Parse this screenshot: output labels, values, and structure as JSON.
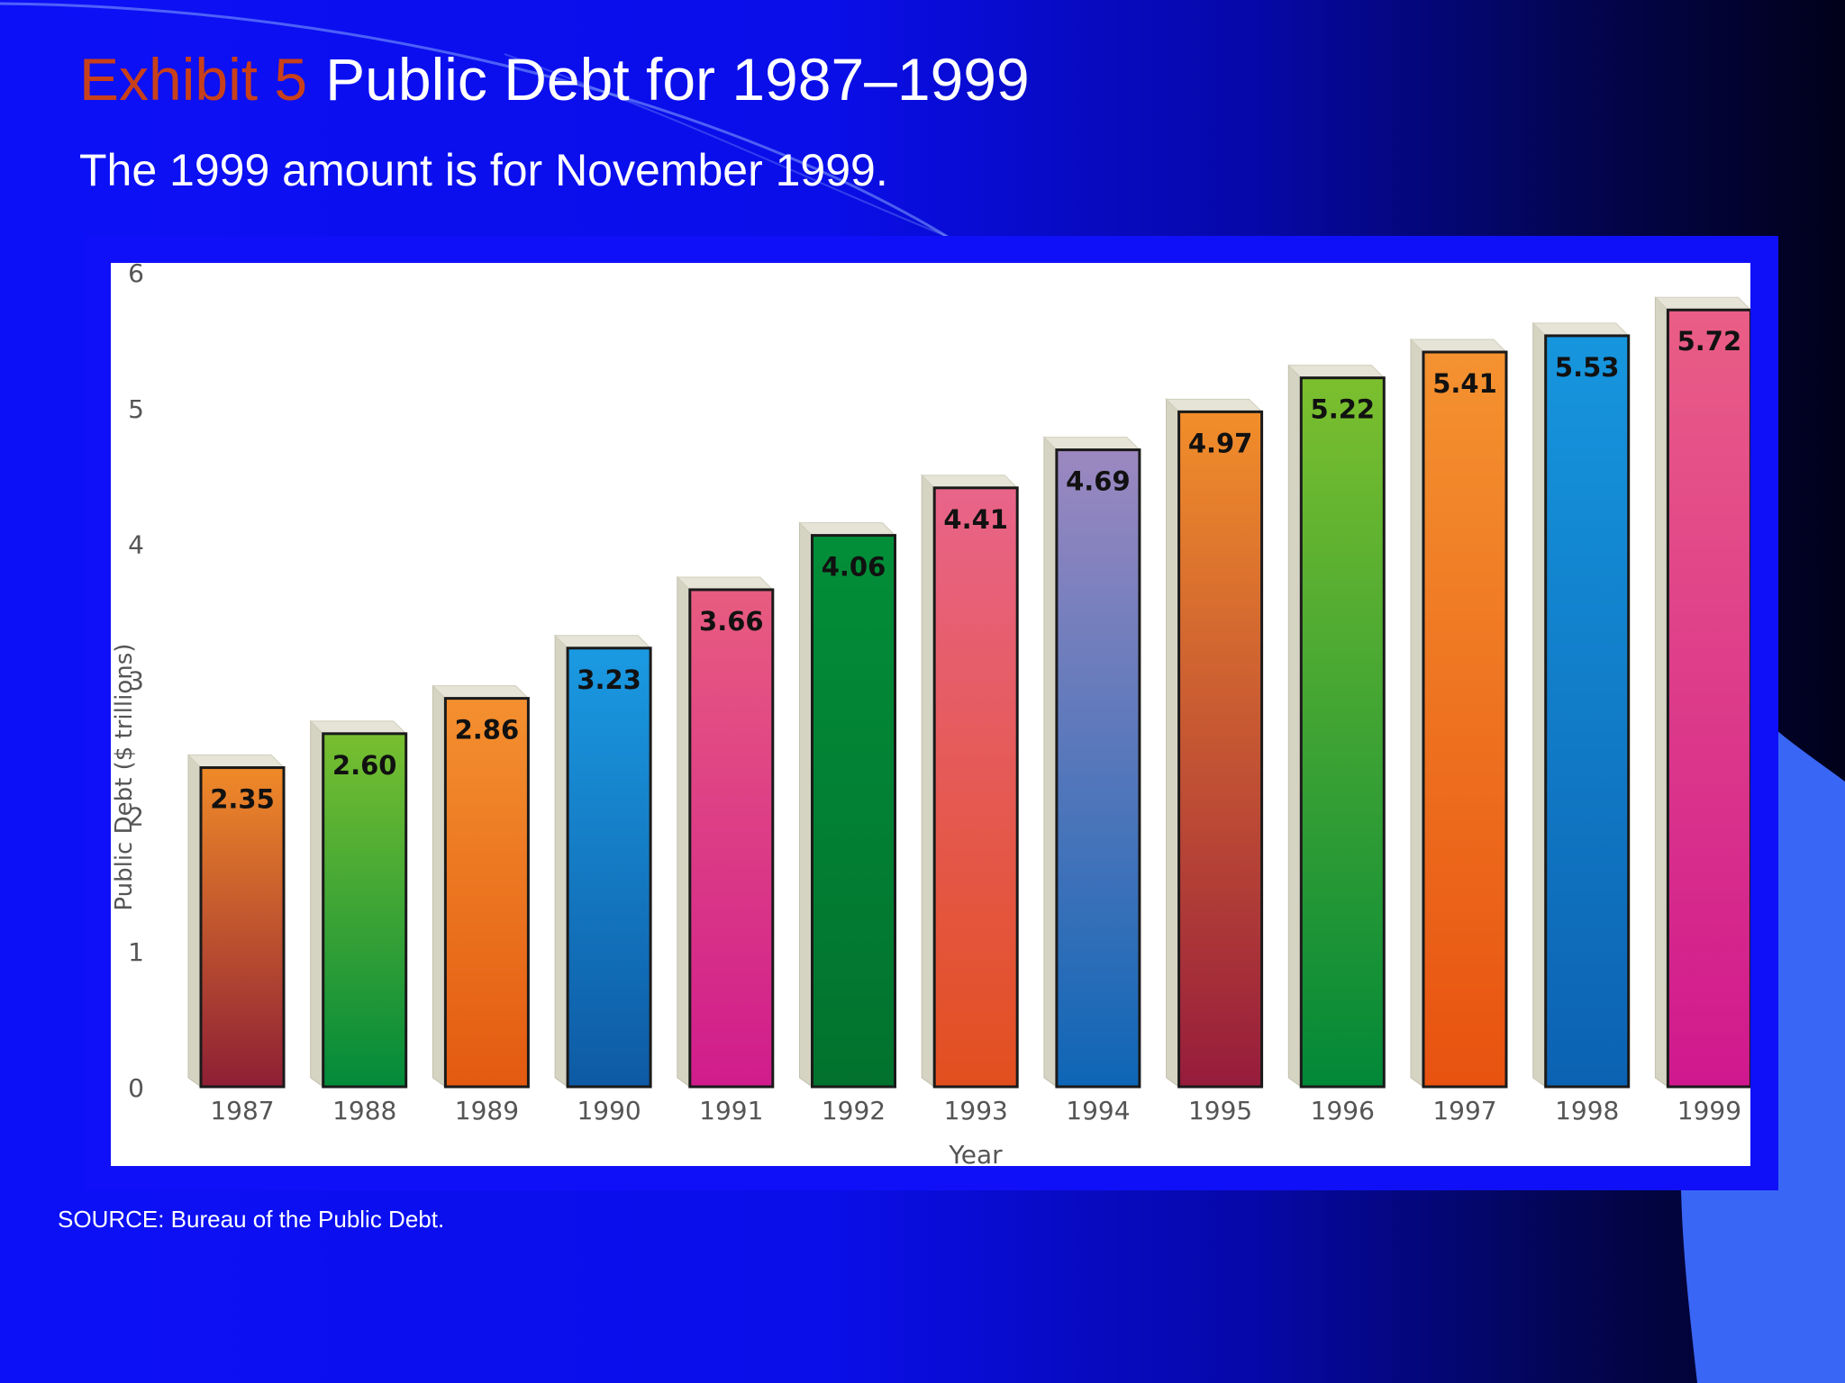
{
  "slide": {
    "title_prefix": "Exhibit 5",
    "title": "Public Debt for 1987–1999",
    "subtitle": "The 1999 amount is for November 1999.",
    "source": "SOURCE: Bureau of the Public Debt."
  },
  "colors": {
    "title_prefix": "#c8401a",
    "background_left": "#0c10f6",
    "background_right": "#01011a",
    "frame": "#1010f8",
    "accent_shape": "#3a66f5"
  },
  "chart_data": {
    "type": "bar",
    "title": "",
    "xlabel": "Year",
    "ylabel": "Public Debt ($ trillions)",
    "ylim": [
      0,
      6
    ],
    "yticks": [
      0,
      1,
      2,
      3,
      4,
      5,
      6
    ],
    "grid": false,
    "categories": [
      "1987",
      "1988",
      "1989",
      "1990",
      "1991",
      "1992",
      "1993",
      "1994",
      "1995",
      "1996",
      "1997",
      "1998",
      "1999"
    ],
    "values": [
      2.35,
      2.6,
      2.86,
      3.23,
      3.66,
      4.06,
      4.41,
      4.69,
      4.97,
      5.22,
      5.41,
      5.53,
      5.72
    ],
    "value_labels": [
      "2.35",
      "2.60",
      "2.86",
      "3.23",
      "3.66",
      "4.06",
      "4.41",
      "4.69",
      "4.97",
      "5.22",
      "5.41",
      "5.53",
      "5.72"
    ],
    "bar_colors": [
      [
        "#f08a28",
        "#8e1f35"
      ],
      [
        "#78bf30",
        "#028a3a"
      ],
      [
        "#f49030",
        "#e35a10"
      ],
      [
        "#1a9ae2",
        "#0e5aa4"
      ],
      [
        "#e85c80",
        "#d01c8c"
      ],
      [
        "#028e38",
        "#02722e"
      ],
      [
        "#e8648a",
        "#e24f1e"
      ],
      [
        "#9c88c0",
        "#0e66b6"
      ],
      [
        "#f28e2a",
        "#961c3c"
      ],
      [
        "#7cbf2e",
        "#028838"
      ],
      [
        "#f49230",
        "#e85210"
      ],
      [
        "#1696de",
        "#0c62b2"
      ],
      [
        "#ea5e86",
        "#d0188e"
      ]
    ]
  }
}
